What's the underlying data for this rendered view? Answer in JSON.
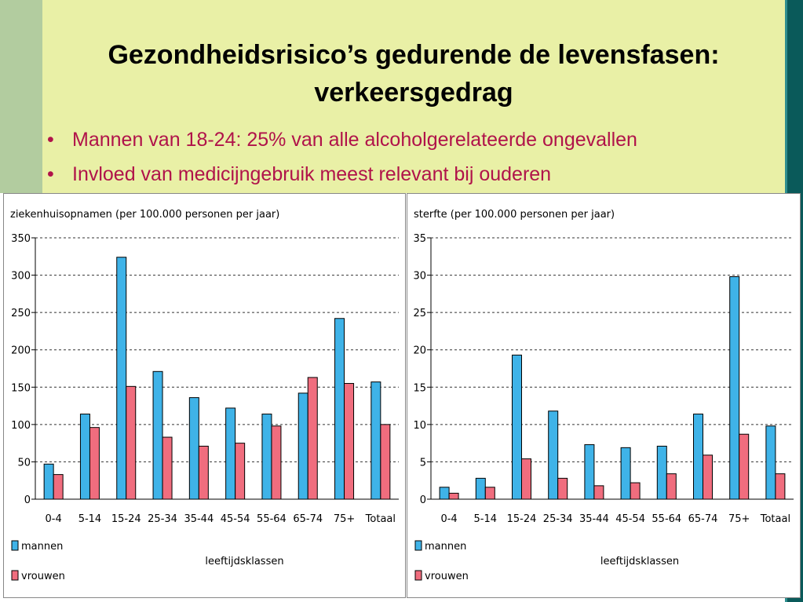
{
  "slide": {
    "title_line1": "Gezondheidsrisico’s gedurende de levensfasen:",
    "title_line2": "verkeersgedrag",
    "bullets": [
      "Mannen van 18-24: 25% van alle alcoholgerelateerde ongevallen",
      "Invloed van medicijngebruik meest relevant bij ouderen"
    ]
  },
  "colors": {
    "mannen": "#3fb3e8",
    "vrouwen": "#f06d7e"
  },
  "chart_data": [
    {
      "type": "bar",
      "title": "ziekenhuisopnamen (per 100.000 personen per jaar)",
      "xlabel": "leeftijdsklassen",
      "ylabel": "",
      "categories": [
        "0-4",
        "5-14",
        "15-24",
        "25-34",
        "35-44",
        "45-54",
        "55-64",
        "65-74",
        "75+",
        "Totaal"
      ],
      "series": [
        {
          "name": "mannen",
          "values": [
            47,
            114,
            324,
            171,
            136,
            122,
            114,
            142,
            242,
            157
          ]
        },
        {
          "name": "vrouwen",
          "values": [
            33,
            96,
            151,
            83,
            71,
            75,
            98,
            163,
            155,
            100
          ]
        }
      ],
      "ylim": [
        0,
        350
      ],
      "yticks": [
        0,
        50,
        100,
        150,
        200,
        250,
        300,
        350
      ],
      "grid": true,
      "legend": "bottom-left"
    },
    {
      "type": "bar",
      "title": "sterfte (per 100.000 personen per jaar)",
      "xlabel": "leeftijdsklassen",
      "ylabel": "",
      "categories": [
        "0-4",
        "5-14",
        "15-24",
        "25-34",
        "35-44",
        "45-54",
        "55-64",
        "65-74",
        "75+",
        "Totaal"
      ],
      "series": [
        {
          "name": "mannen",
          "values": [
            1.6,
            2.8,
            19.3,
            11.8,
            7.3,
            6.9,
            7.1,
            11.4,
            29.8,
            9.8
          ]
        },
        {
          "name": "vrouwen",
          "values": [
            0.8,
            1.6,
            5.4,
            2.8,
            1.8,
            2.2,
            3.4,
            5.9,
            8.7,
            3.4
          ]
        }
      ],
      "ylim": [
        0,
        35
      ],
      "yticks": [
        0,
        5,
        10,
        15,
        20,
        25,
        30,
        35
      ],
      "grid": true,
      "legend": "bottom-left"
    }
  ]
}
